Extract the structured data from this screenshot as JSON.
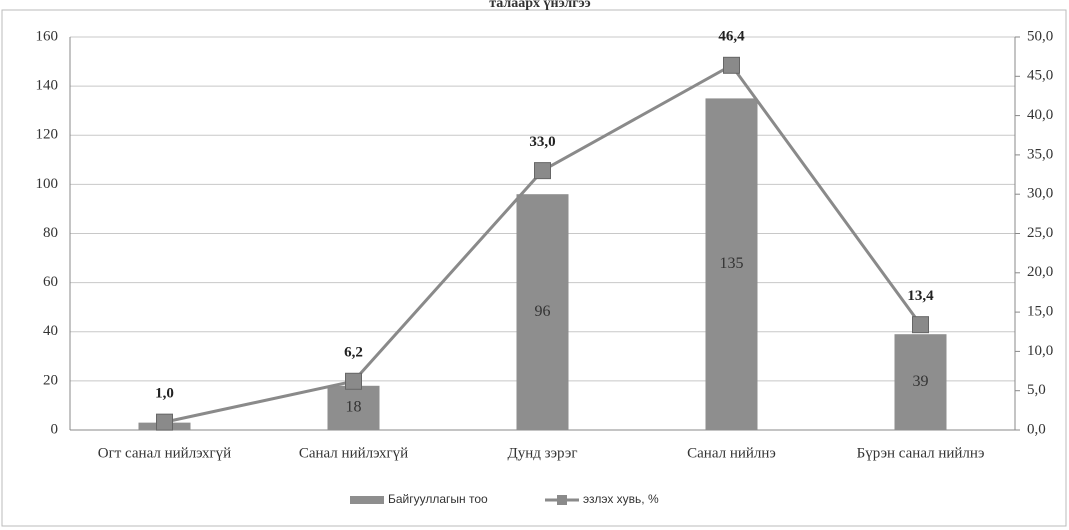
{
  "chart_data": {
    "type": "bar",
    "title": "талаарх үнэлгээ",
    "categories": [
      "Огт санал нийлэхгүй",
      "Санал нийлэхгүй",
      "Дунд зэрэг",
      "Санал нийлнэ",
      "Бүрэн санал нийлнэ"
    ],
    "series": [
      {
        "name": "Байгууллагын тоо",
        "type": "bar",
        "color": "#8e8e8e",
        "values": [
          3,
          18,
          96,
          135,
          39
        ]
      },
      {
        "name": "эзлэх хувь, %",
        "type": "line",
        "axis": "y2",
        "color": "#8a8a8a",
        "values": [
          1.0,
          6.2,
          33.0,
          46.4,
          13.4
        ],
        "value_labels": [
          "1,0",
          "6,2",
          "33,0",
          "46,4",
          "13,4"
        ]
      }
    ],
    "ylim": [
      0,
      160
    ],
    "yticks": [
      0,
      20,
      40,
      60,
      80,
      100,
      120,
      140,
      160
    ],
    "y2lim": [
      0,
      50
    ],
    "y2ticks": [
      {
        "value": 0,
        "label": "0,0"
      },
      {
        "value": 5,
        "label": "5,0"
      },
      {
        "value": 10,
        "label": "10,0"
      },
      {
        "value": 15,
        "label": "15,0"
      },
      {
        "value": 20,
        "label": "20,0"
      },
      {
        "value": 25,
        "label": "25,0"
      },
      {
        "value": 30,
        "label": "30,0"
      },
      {
        "value": 35,
        "label": "35,0"
      },
      {
        "value": 40,
        "label": "40,0"
      },
      {
        "value": 45,
        "label": "45,0"
      },
      {
        "value": 50,
        "label": "50,0"
      }
    ],
    "grid": true,
    "legend": "bottom"
  }
}
